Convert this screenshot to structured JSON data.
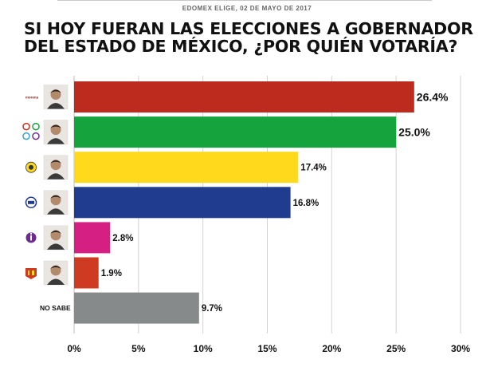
{
  "header": {
    "subtitle": "EDOMEX ELIGE, 02 DE MAYO DE 2017",
    "title_line1": "SI HOY FUERAN LAS ELECCIONES A GOBERNADOR",
    "title_line2": "DEL ESTADO DE MÉXICO, ¿POR QUIÉN VOTARÍA?"
  },
  "chart_data": {
    "type": "bar",
    "orientation": "horizontal",
    "title": "SI HOY FUERAN LAS ELECCIONES A GOBERNADOR DEL ESTADO DE MÉXICO, ¿POR QUIÉN VOTARÍA?",
    "categories": [
      "MORENA",
      "PRI-PVEM-PANAL-PES",
      "PRD",
      "PAN",
      "Independiente",
      "PT",
      "NO SABE"
    ],
    "values": [
      26.4,
      25.0,
      17.4,
      16.8,
      2.8,
      1.9,
      9.7
    ],
    "data_labels": [
      "26.4%",
      "25.0%",
      "17.4%",
      "16.8%",
      "2.8%",
      "1.9%",
      "9.7%"
    ],
    "colors": [
      "#bc2b1d",
      "#14a33c",
      "#ffd91c",
      "#1f3c8f",
      "#d61f82",
      "#cf3a22",
      "#878a8a"
    ],
    "icons": [
      "morena-logo",
      "coalition-logos",
      "prd-logo",
      "pan-logo",
      "independent-logo",
      "pt-logo",
      "none"
    ],
    "row_labels": [
      "",
      "",
      "",
      "",
      "",
      "",
      "NO SABE"
    ],
    "xlim": [
      0,
      30
    ],
    "x_ticks": [
      "0%",
      "5%",
      "10%",
      "15%",
      "20%",
      "25%",
      "30%"
    ],
    "grid": true
  }
}
